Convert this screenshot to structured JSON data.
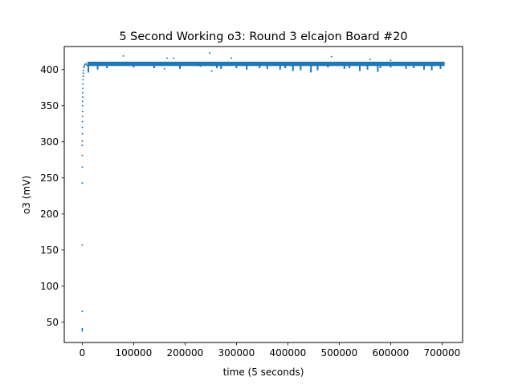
{
  "chart_data": {
    "type": "scatter",
    "title": "5 Second Working o3: Round 3 elcajon Board #20",
    "xlabel": "time (5 seconds)",
    "ylabel": "o3 (mV)",
    "xlim": [
      -35000,
      740000
    ],
    "ylim": [
      22,
      432
    ],
    "x_ticks": [
      0,
      100000,
      200000,
      300000,
      400000,
      500000,
      600000,
      700000
    ],
    "x_tick_labels": [
      "0",
      "100000",
      "200000",
      "300000",
      "400000",
      "500000",
      "600000",
      "700000"
    ],
    "y_ticks": [
      50,
      100,
      150,
      200,
      250,
      300,
      350,
      400
    ],
    "y_tick_labels": [
      "50",
      "100",
      "150",
      "200",
      "250",
      "300",
      "350",
      "400"
    ],
    "grid": false,
    "marker_color": "#1f77b4",
    "series": [
      {
        "band": {
          "x_range": [
            10000,
            705000
          ],
          "y_center": 408,
          "y_halfwidth": 3
        },
        "points": [
          [
            0,
            38
          ],
          [
            0,
            40
          ],
          [
            0,
            41
          ],
          [
            0,
            65
          ],
          [
            0,
            157
          ],
          [
            0,
            243
          ],
          [
            0,
            265
          ],
          [
            0,
            281
          ],
          [
            0,
            295
          ],
          [
            0,
            301
          ],
          [
            300,
            311
          ],
          [
            300,
            320
          ],
          [
            400,
            328
          ],
          [
            500,
            335
          ],
          [
            600,
            342
          ],
          [
            700,
            350
          ],
          [
            800,
            356
          ],
          [
            900,
            362
          ],
          [
            1000,
            368
          ],
          [
            1200,
            374
          ],
          [
            1400,
            380
          ],
          [
            1600,
            386
          ],
          [
            1800,
            391
          ],
          [
            2000,
            395
          ],
          [
            2400,
            399
          ],
          [
            3000,
            403
          ],
          [
            4000,
            405
          ],
          [
            5000,
            407
          ],
          [
            7000,
            408
          ],
          [
            9000,
            406
          ],
          [
            12000,
            409
          ],
          [
            80000,
            419
          ],
          [
            165000,
            416
          ],
          [
            178000,
            416
          ],
          [
            248000,
            423
          ],
          [
            252000,
            398
          ],
          [
            160000,
            401
          ],
          [
            290000,
            416
          ],
          [
            485000,
            418
          ],
          [
            560000,
            414
          ],
          [
            600000,
            413
          ]
        ],
        "dips": [
          [
            12000,
            396
          ],
          [
            30000,
            400
          ],
          [
            48000,
            402
          ],
          [
            100000,
            403
          ],
          [
            140000,
            402
          ],
          [
            190000,
            401
          ],
          [
            230000,
            404
          ],
          [
            262000,
            402
          ],
          [
            270000,
            401
          ],
          [
            300000,
            402
          ],
          [
            320000,
            400
          ],
          [
            345000,
            402
          ],
          [
            360000,
            401
          ],
          [
            385000,
            400
          ],
          [
            395000,
            402
          ],
          [
            410000,
            398
          ],
          [
            425000,
            399
          ],
          [
            445000,
            396
          ],
          [
            458000,
            399
          ],
          [
            478000,
            403
          ],
          [
            510000,
            401
          ],
          [
            520000,
            402
          ],
          [
            540000,
            398
          ],
          [
            555000,
            400
          ],
          [
            575000,
            397
          ],
          [
            580000,
            402
          ],
          [
            600000,
            403
          ],
          [
            630000,
            401
          ],
          [
            645000,
            402
          ],
          [
            665000,
            400
          ],
          [
            680000,
            399
          ],
          [
            697000,
            401
          ]
        ]
      }
    ]
  }
}
